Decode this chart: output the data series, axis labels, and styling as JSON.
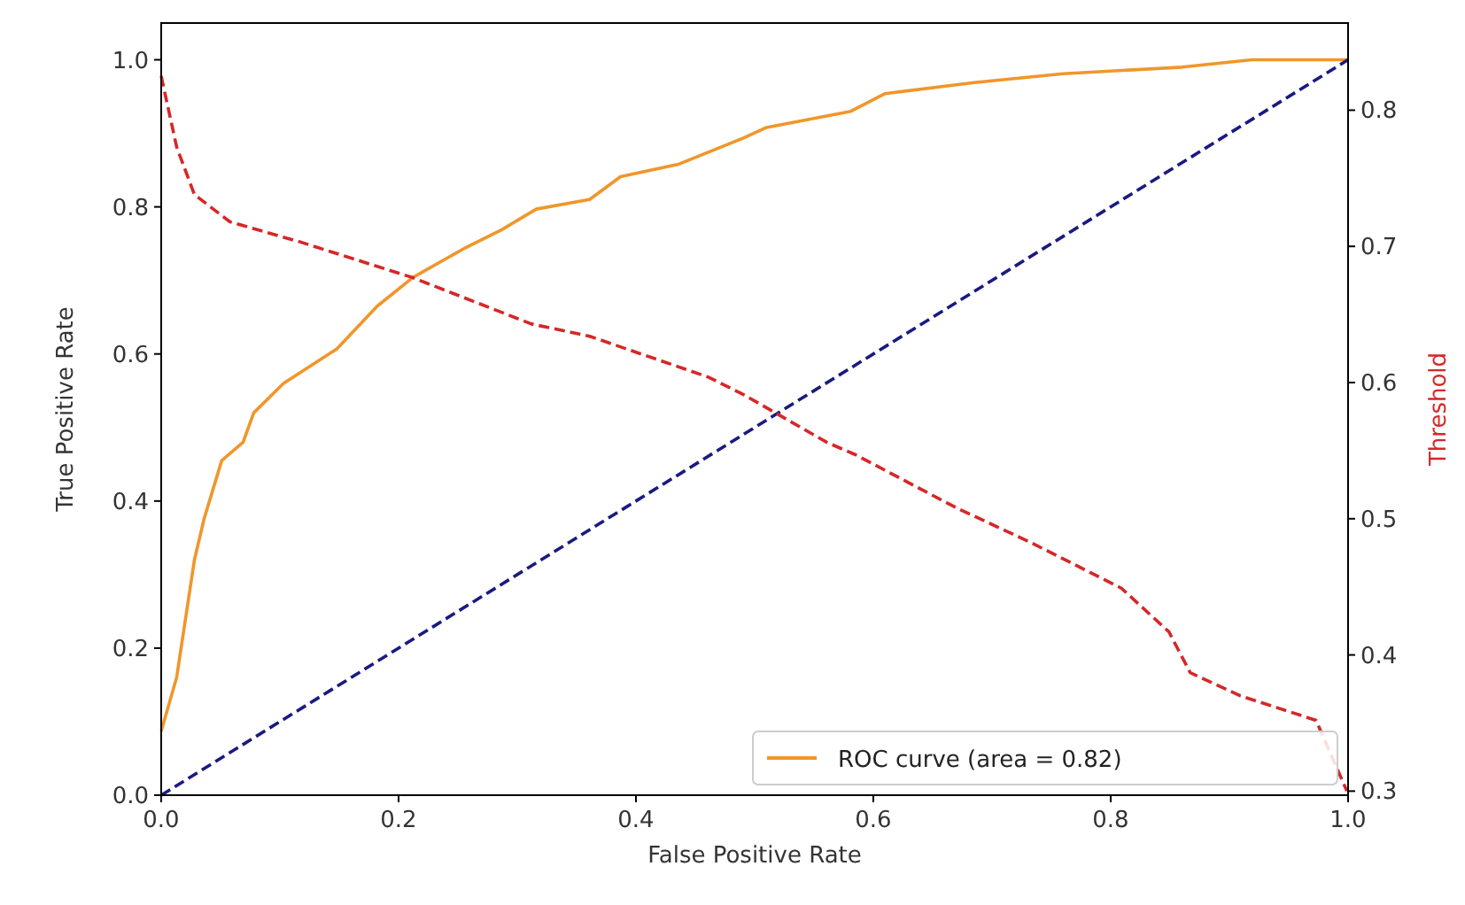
{
  "chart_data": {
    "type": "line",
    "xlabel": "False Positive Rate",
    "ylabel": "True Positive Rate",
    "y2label": "Threshold",
    "xlim": [
      0,
      1
    ],
    "ylim": [
      0,
      1.05
    ],
    "y2lim": [
      0.297,
      0.864
    ],
    "xticks": [
      {
        "value": 0,
        "label": "0.0"
      },
      0.2,
      0.4,
      0.6,
      0.8,
      {
        "value": 1,
        "label": "1.0"
      }
    ],
    "yticks": [
      {
        "value": 0,
        "label": "0.0"
      },
      0.2,
      0.4,
      0.6,
      0.8,
      {
        "value": 1,
        "label": "1.0"
      }
    ],
    "y2ticks": [
      0.3,
      0.4,
      0.5,
      0.6,
      0.7,
      0.8
    ],
    "grid": false,
    "legend": "bottom right",
    "marker": "none",
    "series": [
      {
        "name": "ROC curve (area = 0.82)",
        "color": "#f0962a",
        "line_style": "solid",
        "x": [
          0,
          0.013,
          0.028,
          0.036,
          0.051,
          0.069,
          0.078,
          0.103,
          0.148,
          0.182,
          0.212,
          0.257,
          0.287,
          0.316,
          0.361,
          0.387,
          0.436,
          0.491,
          0.51,
          0.581,
          0.61,
          0.685,
          0.76,
          0.86,
          0.919,
          1
        ],
        "values": [
          0.087,
          0.16,
          0.32,
          0.375,
          0.455,
          0.48,
          0.52,
          0.56,
          0.607,
          0.665,
          0.704,
          0.745,
          0.769,
          0.797,
          0.81,
          0.841,
          0.858,
          0.894,
          0.908,
          0.93,
          0.954,
          0.969,
          0.981,
          0.99,
          1,
          1
        ]
      },
      {
        "color": "#1a1a80",
        "line_style": "dashed",
        "x": [
          0,
          1
        ],
        "values": [
          0,
          1
        ]
      },
      {
        "color": "#d62728",
        "line_style": "dashed",
        "axis": "y2",
        "x": [
          0,
          0.013,
          0.028,
          0.058,
          0.118,
          0.212,
          0.312,
          0.361,
          0.461,
          0.491,
          0.561,
          0.585,
          0.67,
          0.734,
          0.809,
          0.849,
          0.867,
          0.909,
          0.973,
          0.999
        ],
        "values": [
          0.825,
          0.773,
          0.738,
          0.718,
          0.703,
          0.677,
          0.643,
          0.634,
          0.604,
          0.591,
          0.556,
          0.547,
          0.508,
          0.482,
          0.449,
          0.417,
          0.387,
          0.37,
          0.352,
          0.3
        ]
      }
    ]
  }
}
